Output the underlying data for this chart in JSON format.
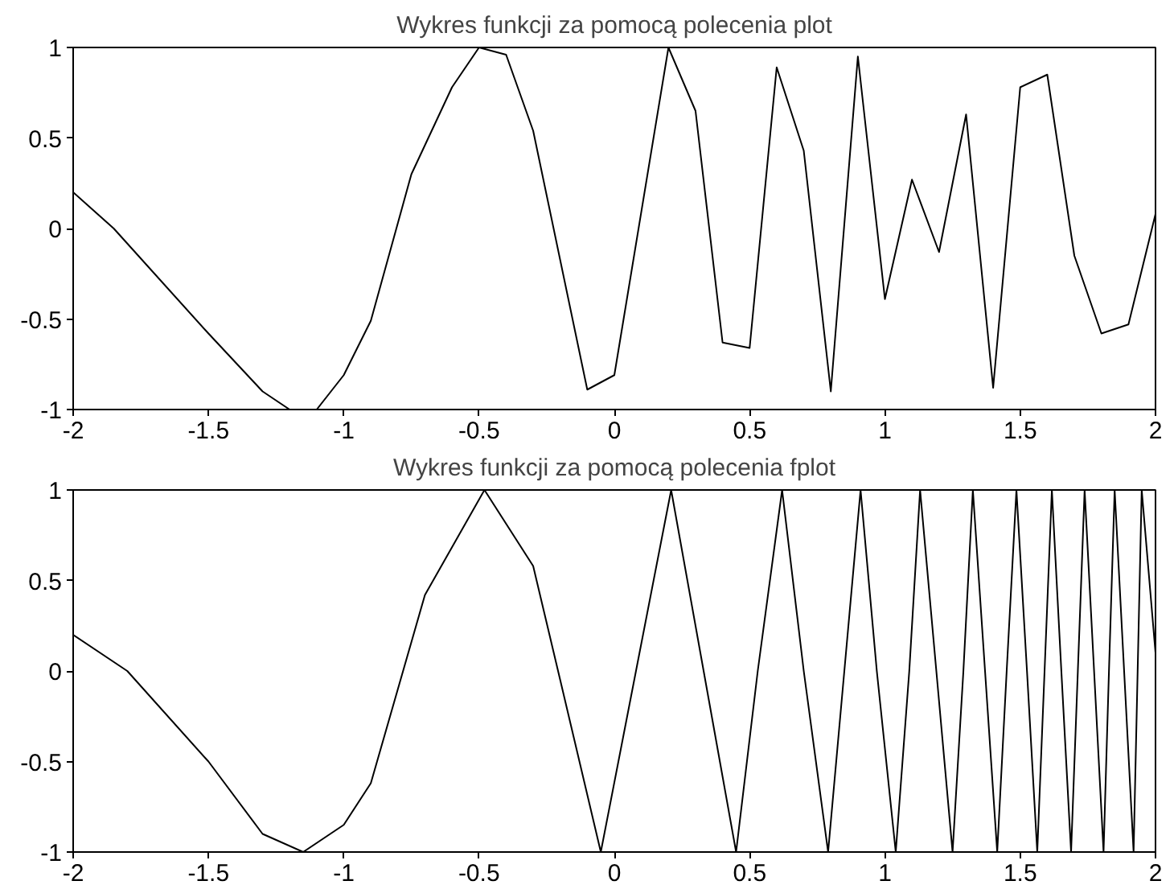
{
  "chart_data": [
    {
      "type": "line",
      "title": "Wykres funkcji za pomocą polecenia plot",
      "xlim": [
        -2,
        2
      ],
      "ylim": [
        -1,
        1
      ],
      "xticks": [
        -2,
        -1.5,
        -1,
        -0.5,
        0,
        0.5,
        1,
        1.5,
        2
      ],
      "yticks": [
        -1,
        -0.5,
        0,
        0.5,
        1
      ],
      "grid": false,
      "series": [
        {
          "color": "#000000",
          "x": [
            -2,
            -1.85,
            -1.5,
            -1.3,
            -1.2,
            -1.1,
            -1,
            -0.9,
            -0.75,
            -0.6,
            -0.5,
            -0.4,
            -0.3,
            -0.1,
            0,
            0.2,
            0.3,
            0.4,
            0.5,
            0.6,
            0.7,
            0.8,
            0.9,
            1.0,
            1.1,
            1.2,
            1.3,
            1.4,
            1.5,
            1.6,
            1.7,
            1.8,
            1.9,
            2.0
          ],
          "values": [
            0.2,
            0,
            -0.58,
            -0.9,
            -1,
            -1,
            -0.81,
            -0.51,
            0.3,
            0.78,
            1,
            0.96,
            0.54,
            -0.89,
            -0.81,
            1,
            0.65,
            -0.63,
            -0.66,
            0.89,
            0.43,
            -0.9,
            0.95,
            -0.39,
            0.27,
            -0.13,
            0.63,
            -0.88,
            0.78,
            0.85,
            -0.15,
            -0.58,
            -0.53,
            0.08
          ]
        }
      ]
    },
    {
      "type": "line",
      "title": "Wykres funkcji za pomocą polecenia fplot",
      "xlim": [
        -2,
        2
      ],
      "ylim": [
        -1,
        1
      ],
      "xticks": [
        -2,
        -1.5,
        -1,
        -0.5,
        0,
        0.5,
        1,
        1.5,
        2
      ],
      "yticks": [
        -1,
        -0.5,
        0,
        0.5,
        1
      ],
      "grid": false,
      "series": [
        {
          "color": "#000000",
          "x": [
            -2,
            -1.8,
            -1.5,
            -1.3,
            -1.15,
            -1.0,
            -0.9,
            -0.7,
            -0.48,
            -0.3,
            -0.2,
            -0.05,
            0.08,
            0.21,
            0.33,
            0.45,
            0.53,
            0.62,
            0.7,
            0.79,
            0.85,
            0.91,
            0.97,
            1.04,
            1.09,
            1.13,
            1.19,
            1.25,
            1.29,
            1.325,
            1.37,
            1.415,
            1.45,
            1.486,
            1.525,
            1.563,
            1.59,
            1.617,
            1.652,
            1.688,
            1.713,
            1.738,
            1.773,
            1.808,
            1.828,
            1.849,
            1.884,
            1.919,
            1.934,
            1.949,
            2.0
          ],
          "values": [
            0.2,
            0,
            -0.5,
            -0.9,
            -1,
            -0.85,
            -0.62,
            0.42,
            1,
            0.58,
            -0.05,
            -1,
            0,
            1,
            0,
            -1,
            0,
            1,
            0,
            -1,
            0,
            1,
            0,
            -1,
            0,
            1,
            0,
            -1,
            0,
            1,
            0,
            -1,
            0,
            1,
            0,
            -1,
            0,
            1,
            0,
            -1,
            0,
            1,
            0,
            -1,
            0,
            1,
            0,
            -1,
            0,
            1,
            0.1
          ]
        }
      ]
    }
  ]
}
